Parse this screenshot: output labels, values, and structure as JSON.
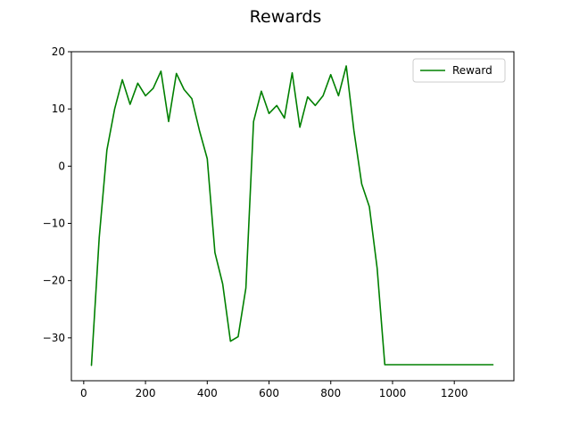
{
  "chart_data": {
    "type": "line",
    "title": "Rewards",
    "xlabel": "",
    "ylabel": "",
    "xlim": [
      -40,
      1393
    ],
    "ylim": [
      -37.5,
      20
    ],
    "xticks": [
      0,
      200,
      400,
      600,
      800,
      1000,
      1200
    ],
    "yticks": [
      -30,
      -20,
      -10,
      0,
      10,
      20
    ],
    "xtick_labels": [
      "0",
      "200",
      "400",
      "600",
      "800",
      "1000",
      "1200"
    ],
    "ytick_labels": [
      "−30",
      "−20",
      "−10",
      "0",
      "10",
      "20"
    ],
    "grid": false,
    "legend_position": "upper-right",
    "series": [
      {
        "name": "Reward",
        "color": "#008000",
        "x": [
          25,
          50,
          75,
          100,
          125,
          150,
          175,
          200,
          225,
          250,
          275,
          300,
          325,
          350,
          375,
          400,
          425,
          450,
          475,
          500,
          525,
          550,
          575,
          600,
          625,
          650,
          675,
          700,
          725,
          750,
          775,
          800,
          825,
          850,
          875,
          900,
          925,
          950,
          975,
          1000,
          1025,
          1050,
          1075,
          1100,
          1125,
          1150,
          1175,
          1200,
          1225,
          1250,
          1275,
          1300,
          1325
        ],
        "y": [
          -34.8,
          -12.5,
          2.8,
          10,
          15.1,
          10.8,
          14.5,
          12.3,
          13.6,
          16.6,
          7.8,
          16.2,
          13.4,
          11.8,
          6.2,
          1.3,
          -15.1,
          -20.6,
          -30.6,
          -29.8,
          -21.3,
          7.8,
          13.1,
          9.2,
          10.6,
          8.4,
          16.3,
          6.8,
          12.1,
          10.6,
          12.3,
          16,
          12.3,
          17.5,
          6.2,
          -3.1,
          -7.1,
          -17.8,
          -34.7,
          -34.7,
          -34.7,
          -34.7,
          -34.7,
          -34.7,
          -34.7,
          -34.7,
          -34.7,
          -34.7,
          -34.7,
          -34.7,
          -34.7,
          -34.7,
          -34.7
        ]
      }
    ]
  }
}
